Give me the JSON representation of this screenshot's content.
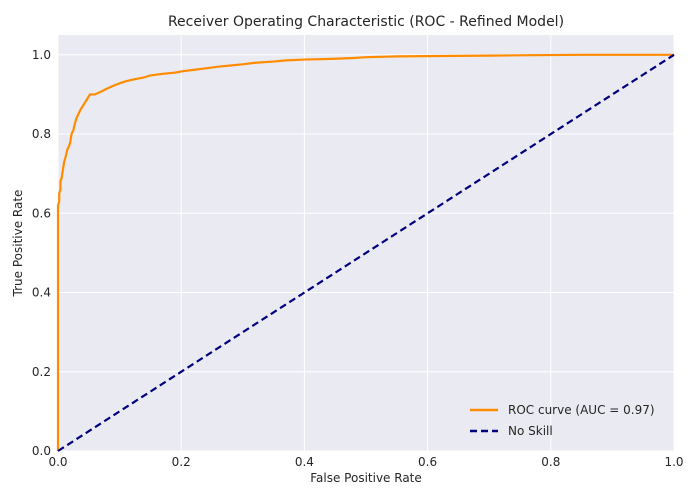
{
  "chart_data": {
    "type": "line",
    "title": "Receiver Operating Characteristic (ROC - Refined Model)",
    "xlabel": "False Positive Rate",
    "ylabel": "True Positive Rate",
    "xlim": [
      0.0,
      1.0
    ],
    "ylim": [
      0.0,
      1.05
    ],
    "xticks": [
      0.0,
      0.2,
      0.4,
      0.6,
      0.8,
      1.0
    ],
    "xtick_labels": [
      "0.0",
      "0.2",
      "0.4",
      "0.6",
      "0.8",
      "1.0"
    ],
    "yticks": [
      0.0,
      0.2,
      0.4,
      0.6,
      0.8,
      1.0
    ],
    "ytick_labels": [
      "0.0",
      "0.2",
      "0.4",
      "0.6",
      "0.8",
      "1.0"
    ],
    "grid": true,
    "legend_position": "lower-right",
    "series": [
      {
        "name": "ROC curve (AUC = 0.97)",
        "color": "#ff8c00",
        "style": "solid",
        "x": [
          0.0,
          0.0,
          0.002,
          0.002,
          0.004,
          0.004,
          0.006,
          0.008,
          0.01,
          0.012,
          0.015,
          0.018,
          0.02,
          0.022,
          0.025,
          0.028,
          0.03,
          0.033,
          0.036,
          0.04,
          0.044,
          0.048,
          0.052,
          0.056,
          0.06,
          0.07,
          0.08,
          0.09,
          0.1,
          0.11,
          0.12,
          0.13,
          0.14,
          0.15,
          0.17,
          0.19,
          0.2,
          0.22,
          0.24,
          0.26,
          0.28,
          0.3,
          0.32,
          0.35,
          0.37,
          0.4,
          0.45,
          0.48,
          0.5,
          0.55,
          0.62,
          0.7,
          0.77,
          0.85,
          1.0
        ],
        "y": [
          0.0,
          0.62,
          0.63,
          0.65,
          0.66,
          0.68,
          0.69,
          0.71,
          0.73,
          0.74,
          0.76,
          0.77,
          0.78,
          0.8,
          0.81,
          0.83,
          0.84,
          0.85,
          0.86,
          0.87,
          0.88,
          0.89,
          0.9,
          0.9,
          0.9,
          0.907,
          0.915,
          0.922,
          0.928,
          0.933,
          0.937,
          0.94,
          0.943,
          0.948,
          0.952,
          0.955,
          0.958,
          0.962,
          0.966,
          0.97,
          0.973,
          0.976,
          0.98,
          0.983,
          0.986,
          0.988,
          0.99,
          0.992,
          0.994,
          0.996,
          0.997,
          0.998,
          0.999,
          1.0,
          1.0
        ]
      },
      {
        "name": "No Skill",
        "color": "#000080",
        "style": "dashed",
        "x": [
          0.0,
          1.0
        ],
        "y": [
          0.0,
          1.0
        ]
      }
    ]
  },
  "style": {
    "plot_background": "#eaeaf2",
    "grid_color": "#ffffff",
    "text_color": "#262626"
  }
}
